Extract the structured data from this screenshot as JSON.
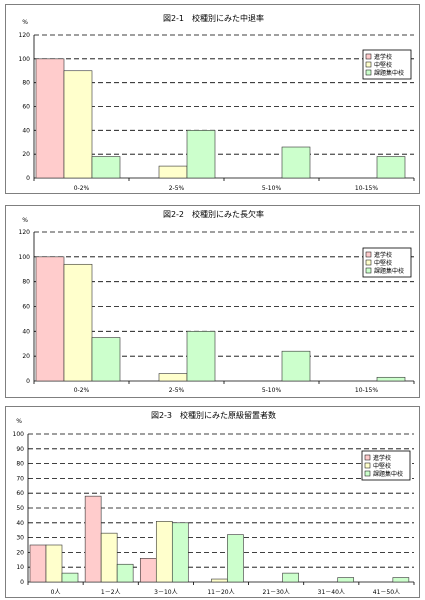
{
  "colors": {
    "s1": "#ffcccc",
    "s2": "#ffffcc",
    "s3": "#ccffcc",
    "border": "#333333"
  },
  "chart_data": [
    {
      "type": "bar",
      "title": "図2-1　校種別にみた中退率",
      "ylabel": "%",
      "ylim": [
        0,
        120
      ],
      "yticks": [
        0,
        20,
        40,
        60,
        80,
        100,
        120
      ],
      "categories": [
        "0-2%",
        "2-5%",
        "5-10%",
        "10-15%"
      ],
      "series": [
        {
          "name": "進学校",
          "values": [
            100,
            0,
            0,
            0
          ]
        },
        {
          "name": "中堅校",
          "values": [
            90,
            10,
            0,
            0
          ]
        },
        {
          "name": "課題集中校",
          "values": [
            18,
            40,
            26,
            18
          ]
        }
      ],
      "legend": "right",
      "grid": "dashed"
    },
    {
      "type": "bar",
      "title": "図2-2　校種別にみた長欠率",
      "ylabel": "%",
      "ylim": [
        0,
        120
      ],
      "yticks": [
        0,
        20,
        40,
        60,
        80,
        100,
        120
      ],
      "categories": [
        "0-2%",
        "2-5%",
        "5-10%",
        "10-15%"
      ],
      "series": [
        {
          "name": "進学校",
          "values": [
            100,
            0,
            0,
            0
          ]
        },
        {
          "name": "中堅校",
          "values": [
            94,
            6,
            0,
            0
          ]
        },
        {
          "name": "課題集中校",
          "values": [
            35,
            40,
            24,
            3
          ]
        }
      ],
      "legend": "right",
      "grid": "dashed"
    },
    {
      "type": "bar",
      "title": "図2-3　校種別にみた原級留置者数",
      "ylabel": "%",
      "ylim": [
        0,
        100
      ],
      "yticks": [
        0,
        10,
        20,
        30,
        40,
        50,
        60,
        70,
        80,
        90,
        100
      ],
      "categories": [
        "0人",
        "1－2人",
        "3－10人",
        "11－20人",
        "21－30人",
        "31－40人",
        "41－50人"
      ],
      "series": [
        {
          "name": "進学校",
          "values": [
            25,
            58,
            16,
            0,
            0,
            0,
            0
          ]
        },
        {
          "name": "中堅校",
          "values": [
            25,
            33,
            41,
            2,
            0,
            0,
            0
          ]
        },
        {
          "name": "課題集中校",
          "values": [
            6,
            12,
            40,
            32,
            6,
            3,
            3
          ]
        }
      ],
      "legend": "right",
      "grid": "dashed"
    }
  ]
}
